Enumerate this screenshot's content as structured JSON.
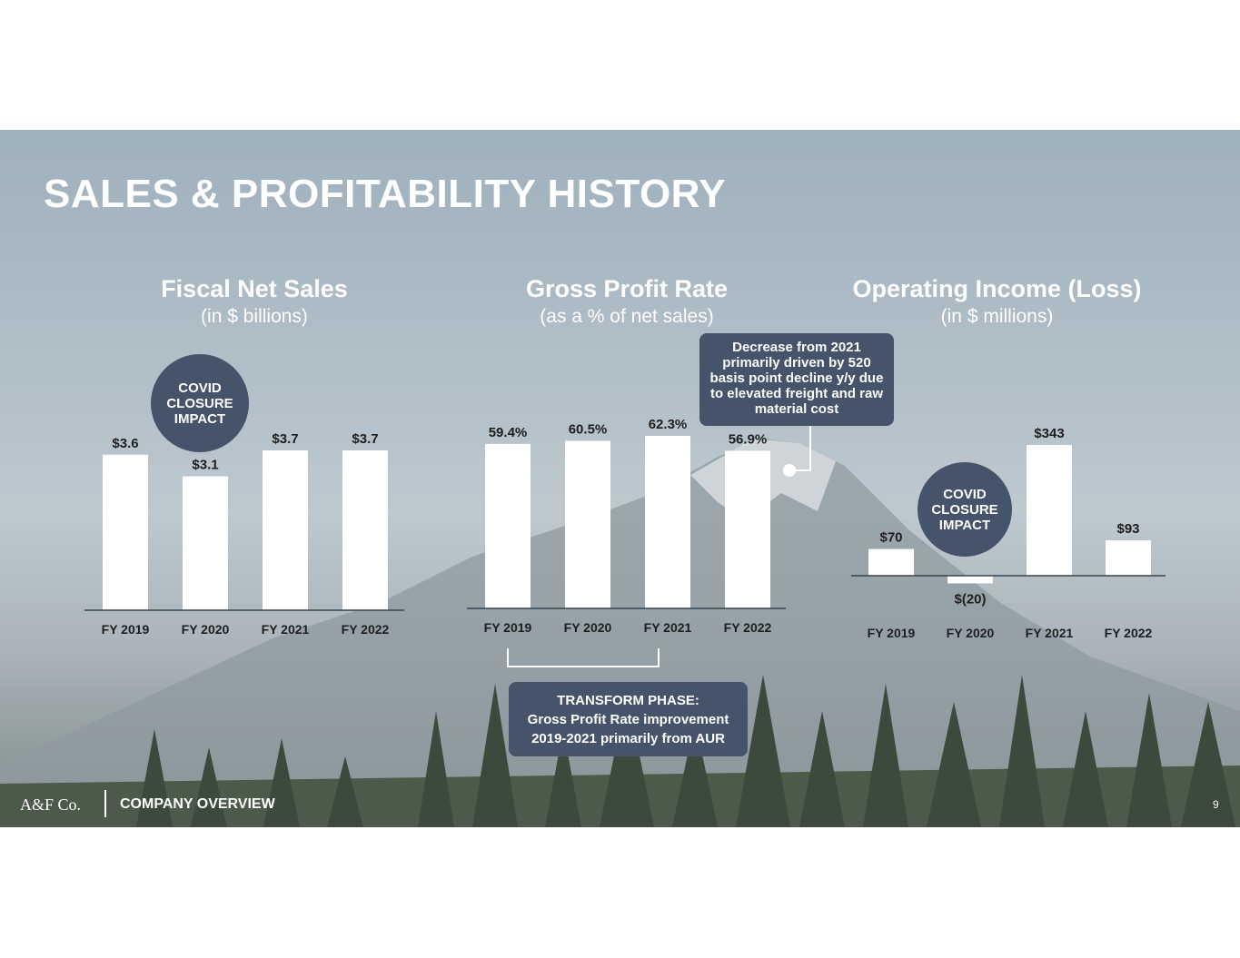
{
  "title": "SALES & PROFITABILITY HISTORY",
  "footer": {
    "brand": "A&F Co.",
    "section": "COMPANY OVERVIEW",
    "page": "9"
  },
  "covid_label_1": "COVID CLOSURE IMPACT",
  "covid_label_2": "COVID CLOSURE IMPACT",
  "callout_decrease": "Decrease from 2021 primarily driven by 520 basis point decline y/y due to elevated freight and raw material cost",
  "callout_transform": {
    "heading": "TRANSFORM PHASE:",
    "line1": "Gross Profit Rate improvement",
    "line2": "2019-2021 primarily from AUR"
  },
  "colors": {
    "bar": "#ffffff",
    "callout": "#45546b",
    "text_dark": "#1e1e1e"
  },
  "chart_data": [
    {
      "type": "bar",
      "title": "Fiscal Net Sales",
      "subtitle": "(in $ billions)",
      "categories": [
        "FY 2019",
        "FY 2020",
        "FY 2021",
        "FY 2022"
      ],
      "values": [
        3.6,
        3.1,
        3.7,
        3.7
      ],
      "labels": [
        "$3.6",
        "$3.1",
        "$3.7",
        "$3.7"
      ],
      "ylim": [
        0,
        3.7
      ]
    },
    {
      "type": "bar",
      "title": "Gross Profit Rate",
      "subtitle": "(as a % of net sales)",
      "categories": [
        "FY 2019",
        "FY 2020",
        "FY 2021",
        "FY 2022"
      ],
      "values": [
        59.4,
        60.5,
        62.3,
        56.9
      ],
      "labels": [
        "59.4%",
        "60.5%",
        "62.3%",
        "56.9%"
      ],
      "ylim": [
        0,
        62.3
      ]
    },
    {
      "type": "bar",
      "title": "Operating Income (Loss)",
      "subtitle": "(in $ millions)",
      "categories": [
        "FY 2019",
        "FY 2020",
        "FY 2021",
        "FY 2022"
      ],
      "values": [
        70,
        -20,
        343,
        93
      ],
      "labels": [
        "$70",
        "$(20)",
        "$343",
        "$93"
      ],
      "ylim": [
        -20,
        343
      ]
    }
  ]
}
